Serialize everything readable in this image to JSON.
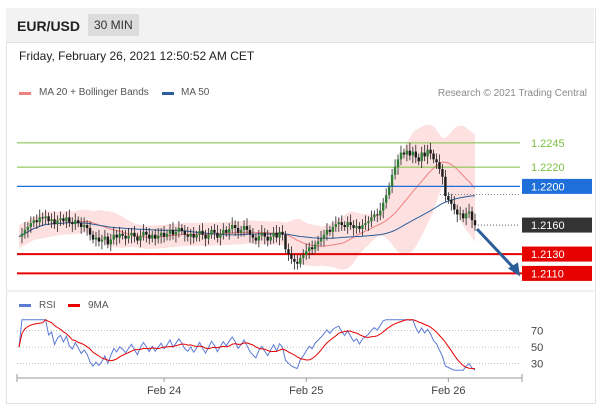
{
  "header": {
    "symbol": "EUR/USD",
    "timeframe": "30 MIN"
  },
  "timestamp": "Friday, February 26, 2021 12:50:52 AM CET",
  "legend_main": [
    {
      "label": "MA 20 + Bollinger Bands",
      "color": "#f08080"
    },
    {
      "label": "MA 50",
      "color": "#2b5d99"
    }
  ],
  "copyright": "Research © 2021 Trading Central",
  "legend_rsi": [
    {
      "label": "RSI",
      "color": "#5b7bd5"
    },
    {
      "label": "9MA",
      "color": "#e60000"
    }
  ],
  "chart_data": [
    {
      "type": "candlestick",
      "title": "",
      "ylim": [
        1.2098,
        1.2278
      ],
      "x_ticks": [
        {
          "label": "Feb 24",
          "index": 49
        },
        {
          "label": "Feb 25",
          "index": 97
        },
        {
          "label": "Feb 26",
          "index": 145
        }
      ],
      "levels": [
        {
          "value": 1.2245,
          "label": "1.2245",
          "kind": "target",
          "color": "#7cbf3f"
        },
        {
          "value": 1.222,
          "label": "1.2220",
          "kind": "target",
          "color": "#7cbf3f"
        },
        {
          "value": 1.22,
          "label": "1.2200",
          "kind": "pivot",
          "color": "#1e6fd9"
        },
        {
          "value": 1.216,
          "label": "1.2160",
          "kind": "last",
          "color": "#333333"
        },
        {
          "value": 1.213,
          "label": "1.2130",
          "kind": "support",
          "color": "#e60000"
        },
        {
          "value": 1.211,
          "label": "1.2110",
          "kind": "support",
          "color": "#e60000"
        }
      ],
      "forecast_arrow": {
        "from": 1.2158,
        "to": 1.2109,
        "color": "#2b5d99"
      },
      "close_series": [
        1.2148,
        1.2151,
        1.2155,
        1.2158,
        1.2162,
        1.2165,
        1.2163,
        1.2168,
        1.2167,
        1.2169,
        1.2164,
        1.2166,
        1.2161,
        1.2165,
        1.2167,
        1.2164,
        1.2168,
        1.2163,
        1.2161,
        1.2165,
        1.2162,
        1.2158,
        1.216,
        1.2157,
        1.215,
        1.2145,
        1.2147,
        1.2143,
        1.2145,
        1.2148,
        1.214,
        1.2145,
        1.215,
        1.2147,
        1.2151,
        1.2149,
        1.2146,
        1.2149,
        1.2152,
        1.2148,
        1.2144,
        1.2149,
        1.2153,
        1.215,
        1.2146,
        1.215,
        1.2146,
        1.2149,
        1.2152,
        1.2148,
        1.2151,
        1.2155,
        1.215,
        1.2153,
        1.2157,
        1.2154,
        1.215,
        1.2148,
        1.2151,
        1.2147,
        1.215,
        1.2154,
        1.215,
        1.2146,
        1.215,
        1.2155,
        1.2152,
        1.2147,
        1.2151,
        1.2155,
        1.2152,
        1.2156,
        1.216,
        1.2157,
        1.2152,
        1.2155,
        1.2159,
        1.2155,
        1.215,
        1.2147,
        1.2144,
        1.2149,
        1.2152,
        1.2148,
        1.2144,
        1.2148,
        1.2152,
        1.2147,
        1.2153,
        1.215,
        1.2135,
        1.213,
        1.2125,
        1.2122,
        1.212,
        1.2126,
        1.2129,
        1.2133,
        1.2137,
        1.2135,
        1.214,
        1.2143,
        1.2146,
        1.215,
        1.2155,
        1.2153,
        1.2158,
        1.2161,
        1.2163,
        1.216,
        1.2158,
        1.2163,
        1.216,
        1.2157,
        1.2159,
        1.2156,
        1.216,
        1.2162,
        1.2164,
        1.2168,
        1.2171,
        1.217,
        1.2175,
        1.2183,
        1.2191,
        1.22,
        1.2212,
        1.222,
        1.2228,
        1.2235,
        1.2233,
        1.2237,
        1.2232,
        1.2236,
        1.223,
        1.2226,
        1.2235,
        1.2231,
        1.2238,
        1.2234,
        1.2228,
        1.2225,
        1.2218,
        1.221,
        1.219,
        1.2186,
        1.2182,
        1.2176,
        1.2171,
        1.2172,
        1.2167,
        1.2172,
        1.2174,
        1.2165,
        1.216
      ]
    },
    {
      "type": "line",
      "title": "RSI",
      "ylim": [
        20,
        85
      ],
      "y_ticks": [
        70,
        50,
        30
      ]
    }
  ]
}
